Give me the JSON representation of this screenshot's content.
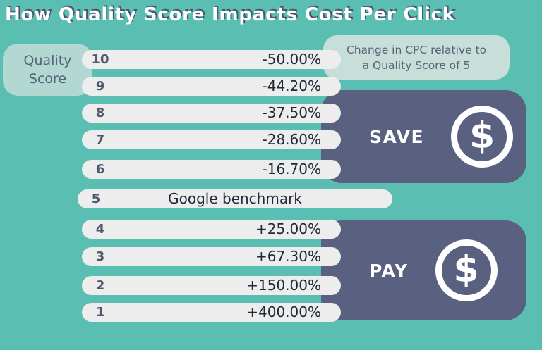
{
  "title": "How Quality Score Impacts Cost Per Click",
  "quality_label": {
    "line1": "Quality",
    "line2": "Score"
  },
  "note": {
    "line1": "Change in CPC relative to",
    "line2": "a Quality Score of 5"
  },
  "panels": {
    "save": {
      "label": "SAVE",
      "icon": "dollar-circle-icon",
      "symbol": "$"
    },
    "pay": {
      "label": "PAY",
      "icon": "dollar-circle-icon",
      "symbol": "$"
    }
  },
  "colors": {
    "background_teal": "#5ABFB2",
    "panel_slate": "#596080",
    "pill_gray": "#ECEDEC",
    "note_teal": "#C8DED9",
    "quality_box_teal": "#B3D8D2",
    "title_white": "#FFFFFF",
    "title_shadow": "#4B5570",
    "value_text": "#202938",
    "score_text": "#4E596D"
  },
  "chart_data": {
    "type": "table",
    "title": "How Quality Score Impacts Cost Per Click",
    "row_axis_label": "Quality Score",
    "annotation": "Change in CPC relative to a Quality Score of 5",
    "benchmark_score": "5",
    "rows": [
      {
        "score": "10",
        "value": "-50.00%",
        "group": "save"
      },
      {
        "score": "9",
        "value": "-44.20%",
        "group": "save"
      },
      {
        "score": "8",
        "value": "-37.50%",
        "group": "save"
      },
      {
        "score": "7",
        "value": "-28.60%",
        "group": "save"
      },
      {
        "score": "6",
        "value": "-16.70%",
        "group": "save"
      },
      {
        "score": "5",
        "value": "Google benchmark",
        "group": "benchmark"
      },
      {
        "score": "4",
        "value": "+25.00%",
        "group": "pay"
      },
      {
        "score": "3",
        "value": "+67.30%",
        "group": "pay"
      },
      {
        "score": "2",
        "value": "+150.00%",
        "group": "pay"
      },
      {
        "score": "1",
        "value": "+400.00%",
        "group": "pay"
      }
    ]
  }
}
